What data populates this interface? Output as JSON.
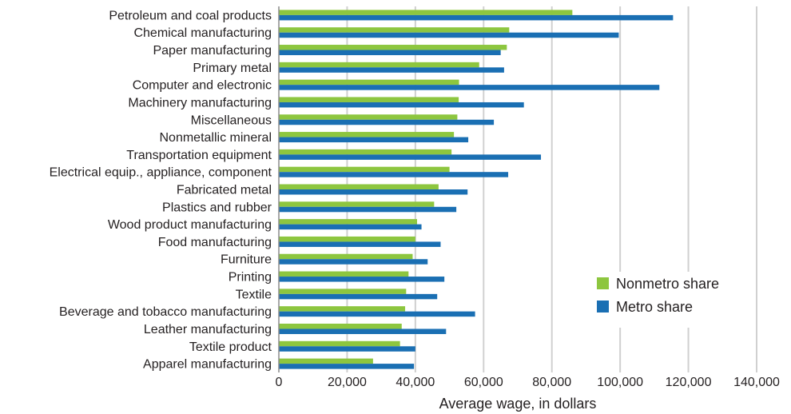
{
  "chart_data": {
    "type": "bar",
    "orientation": "horizontal",
    "categories": [
      "Petroleum and coal products",
      "Chemical manufacturing",
      "Paper manufacturing",
      "Primary metal",
      "Computer and electronic",
      "Machinery manufacturing",
      "Miscellaneous",
      "Nonmetallic mineral",
      "Transportation equipment",
      "Electrical equip., appliance, component",
      "Fabricated metal",
      "Plastics and rubber",
      "Wood product manufacturing",
      "Food manufacturing",
      "Furniture",
      "Printing",
      "Textile",
      "Beverage and tobacco manufacturing",
      "Leather manufacturing",
      "Textile product",
      "Apparel manufacturing"
    ],
    "series": [
      {
        "name": "Nonmetro share",
        "color": "#8dc63f",
        "values": [
          86000,
          67500,
          66800,
          58700,
          52800,
          52700,
          52300,
          51300,
          50600,
          50000,
          46800,
          45500,
          40500,
          40000,
          39200,
          38000,
          37300,
          37000,
          36000,
          35500,
          27600
        ]
      },
      {
        "name": "Metro share",
        "color": "#1a6fb3",
        "values": [
          115500,
          99600,
          65000,
          66000,
          111500,
          71800,
          63000,
          55500,
          76800,
          67200,
          55300,
          52000,
          41800,
          47400,
          43600,
          48500,
          46400,
          57500,
          49000,
          40000,
          39600
        ]
      }
    ],
    "xlabel": "Average wage, in dollars",
    "ylabel": "",
    "xlim": [
      0,
      140000
    ],
    "xticks": [
      0,
      20000,
      40000,
      60000,
      80000,
      100000,
      120000,
      140000
    ],
    "xtick_labels": [
      "0",
      "20,000",
      "40,000",
      "60,000",
      "80,000",
      "100,000",
      "120,000",
      "140,000"
    ],
    "grid": "vertical",
    "legend_position": "bottom-right"
  }
}
